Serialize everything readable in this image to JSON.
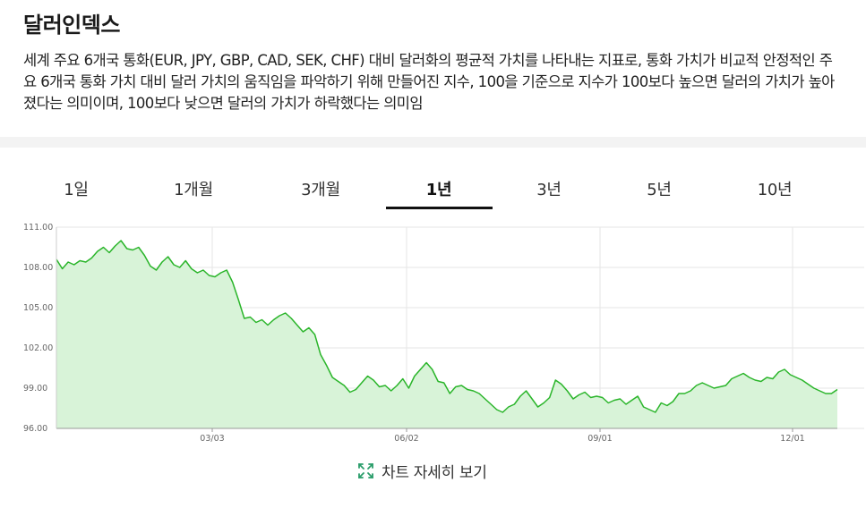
{
  "header": {
    "title": "달러인덱스",
    "description": "세계 주요 6개국 통화(EUR, JPY, GBP, CAD, SEK, CHF) 대비 달러화의 평균적 가치를 나타내는 지표로, 통화 가치가 비교적 안정적인 주요 6개국 통화 가치 대비 달러 가치의 움직임을 파악하기 위해 만들어진 지수, 100을 기준으로 지수가 100보다 높으면 달러의 가치가 높아졌다는 의미이며, 100보다 낮으면 달러의 가치가 하락했다는 의미임"
  },
  "tabs": [
    {
      "label": "1일",
      "active": false
    },
    {
      "label": "1개월",
      "active": false
    },
    {
      "label": "3개월",
      "active": false
    },
    {
      "label": "1년",
      "active": true
    },
    {
      "label": "3년",
      "active": false
    },
    {
      "label": "5년",
      "active": false
    },
    {
      "label": "10년",
      "active": false
    }
  ],
  "footer": {
    "label": "차트 자세히 보기",
    "icon": "expand-icon"
  },
  "colors": {
    "line": "#2ab52a",
    "fill": "#d8f3d8",
    "grid": "#e6e6e6",
    "tab_active": "#111111"
  },
  "chart_data": {
    "type": "area",
    "y_ticks": [
      "111.00",
      "108.00",
      "105.00",
      "102.00",
      "99.00",
      "96.00"
    ],
    "x_ticks": [
      "03/03",
      "06/02",
      "09/01",
      "12/01"
    ],
    "ylim": [
      96,
      111
    ],
    "grid": true,
    "series": [
      {
        "values": [
          108.6,
          107.9,
          108.4,
          108.2,
          108.5,
          108.4,
          108.7,
          109.2,
          109.5,
          109.1,
          109.6,
          110.0,
          109.4,
          109.3,
          109.5,
          108.9,
          108.1,
          107.8,
          108.4,
          108.8,
          108.2,
          108.0,
          108.5,
          107.9,
          107.6,
          107.8,
          107.4,
          107.3,
          107.6,
          107.8,
          106.9,
          105.6,
          104.2,
          104.3,
          103.9,
          104.1,
          103.7,
          104.1,
          104.4,
          104.6,
          104.2,
          103.7,
          103.2,
          103.5,
          103.0,
          101.5,
          100.7,
          99.8,
          99.5,
          99.2,
          98.7,
          98.9,
          99.4,
          99.9,
          99.6,
          99.1,
          99.2,
          98.8,
          99.2,
          99.7,
          99.0,
          99.9,
          100.4,
          100.9,
          100.4,
          99.5,
          99.4,
          98.6,
          99.1,
          99.2,
          98.9,
          98.8,
          98.6,
          98.2,
          97.8,
          97.4,
          97.2,
          97.6,
          97.8,
          98.4,
          98.8,
          98.2,
          97.6,
          97.9,
          98.3,
          99.6,
          99.3,
          98.8,
          98.2,
          98.5,
          98.7,
          98.3,
          98.4,
          98.3,
          97.9,
          98.1,
          98.2,
          97.8,
          98.1,
          98.4,
          97.6,
          97.4,
          97.2,
          97.9,
          97.7,
          98.0,
          98.6,
          98.6,
          98.8,
          99.2,
          99.4,
          99.2,
          99.0,
          99.1,
          99.2,
          99.7,
          99.9,
          100.1,
          99.8,
          99.6,
          99.5,
          99.8,
          99.7,
          100.2,
          100.4,
          100.0,
          99.8,
          99.6,
          99.3,
          99.0,
          98.8,
          98.6,
          98.6,
          98.9
        ]
      }
    ]
  }
}
